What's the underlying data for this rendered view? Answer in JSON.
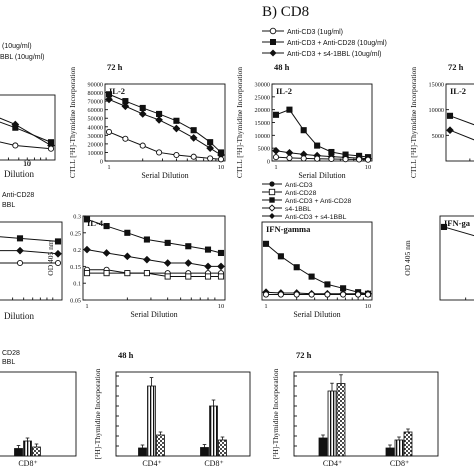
{
  "figure": {
    "section_b_title": "B) CD8",
    "legend_top": [
      {
        "label": "Anti-CD3 (1ug/ml)",
        "marker": "circle-open"
      },
      {
        "label": "Anti-CD3 + Anti-CD28 (10ug/ml)",
        "marker": "square-filled"
      },
      {
        "label": "Anti-CD3 + s4-1BBL (10ug/ml)",
        "marker": "diamond-filled"
      }
    ],
    "legend_top_left_fragments": [
      "(10ug/ml)",
      "BBL (10ug/ml)"
    ],
    "legend_mid": [
      {
        "label": "Anti-CD3",
        "marker": "circle-filled"
      },
      {
        "label": "Anti-CD28",
        "marker": "square-open"
      },
      {
        "label": "Anti-CD3 + Anti-CD28",
        "marker": "square-filled"
      },
      {
        "label": "s4-1BBL",
        "marker": "diamond-open"
      },
      {
        "label": "Anti-CD3 + s4-1BBL",
        "marker": "diamond-filled"
      }
    ],
    "legend_mid_left_fragments": [
      "Anti-CD28",
      "BBL"
    ],
    "legend_bottom_left_fragments": [
      "CD28",
      "BBL"
    ],
    "left_cut_labels": [
      "10",
      "Dilution",
      "Dilution"
    ]
  },
  "chart_data": [
    {
      "type": "line",
      "panel": "top-left-fragment",
      "xlabel": "Serial Dilution",
      "x_ticks": [
        "10"
      ],
      "series": [
        {
          "marker": "diamond-filled",
          "values": [
            70,
            62,
            44,
            18
          ]
        },
        {
          "marker": "square-filled",
          "values": [
            66,
            56,
            40,
            22
          ]
        },
        {
          "marker": "circle-open",
          "values": [
            38,
            28,
            18,
            14
          ]
        }
      ]
    },
    {
      "type": "line",
      "panel": "top-2",
      "title": "72 h",
      "label": "IL-2",
      "ylabel": "CTLL [³H]-Thymidine Incorporation",
      "xlabel": "Serial Dilution",
      "xscale": "log",
      "xlim": [
        1,
        10
      ],
      "x_ticks": [
        "1",
        "10"
      ],
      "ylim": [
        0,
        90000
      ],
      "y_ticks": [
        "0",
        "10000",
        "20000",
        "30000",
        "40000",
        "50000",
        "60000",
        "70000",
        "80000",
        "90000"
      ],
      "x": [
        1,
        1.4,
        2,
        2.8,
        4,
        5.7,
        8,
        10
      ],
      "series": [
        {
          "marker": "square-filled",
          "values": [
            78000,
            70000,
            62000,
            55000,
            47000,
            36000,
            22000,
            10000
          ]
        },
        {
          "marker": "diamond-filled",
          "values": [
            72000,
            64000,
            55000,
            48000,
            38000,
            27000,
            15000,
            7000
          ]
        },
        {
          "marker": "circle-open",
          "values": [
            34000,
            26000,
            18000,
            10000,
            7000,
            5000,
            3000,
            2000
          ]
        }
      ]
    },
    {
      "type": "line",
      "panel": "top-3",
      "title": "48 h",
      "label": "IL-2",
      "ylabel": "CTLL [³H]-Thymidine Incorporation",
      "xlabel": "Serial Dilution",
      "xscale": "log",
      "xlim": [
        1,
        10
      ],
      "x_ticks": [
        "1",
        "10"
      ],
      "ylim": [
        0,
        30000
      ],
      "y_ticks": [
        "0",
        "5000",
        "10000",
        "15000",
        "20000",
        "25000",
        "30000"
      ],
      "x": [
        1,
        1.4,
        2,
        2.8,
        4,
        5.7,
        8,
        10
      ],
      "series": [
        {
          "marker": "square-filled",
          "values": [
            18000,
            20000,
            12000,
            6000,
            3500,
            2500,
            2000,
            1500
          ]
        },
        {
          "marker": "diamond-filled",
          "values": [
            4000,
            3200,
            2600,
            2100,
            1700,
            1400,
            1100,
            900
          ]
        },
        {
          "marker": "circle-open",
          "values": [
            1500,
            1200,
            1000,
            900,
            800,
            700,
            600,
            500
          ]
        }
      ]
    },
    {
      "type": "line",
      "panel": "top-4-fragment",
      "title": "72 h",
      "label": "IL-2",
      "ylabel": "CTLL [³H]-Thymidine Incorporation",
      "y_ticks": [
        "5000",
        "10000",
        "15000"
      ],
      "ylim": [
        0,
        15000
      ],
      "x": [
        1,
        1.4,
        2
      ],
      "series": [
        {
          "marker": "square-filled",
          "values": [
            8800,
            6500,
            4000
          ]
        },
        {
          "marker": "diamond-filled",
          "values": [
            6000,
            3500,
            1500
          ]
        }
      ]
    },
    {
      "type": "line",
      "panel": "mid-left-fragment",
      "xlabel": "Dilution",
      "series": [
        {
          "marker": "square-filled",
          "values": [
            0.22,
            0.21,
            0.2,
            0.19
          ]
        },
        {
          "marker": "diamond-filled",
          "values": [
            0.17,
            0.16,
            0.16,
            0.15
          ]
        },
        {
          "marker": "circle-open",
          "values": [
            0.12,
            0.12,
            0.12,
            0.12
          ]
        }
      ]
    },
    {
      "type": "line",
      "panel": "mid-2",
      "label": "IL-4",
      "ylabel": "OD 405 nm",
      "xlabel": "Serial Dilution",
      "xscale": "log",
      "xlim": [
        1,
        10
      ],
      "x_ticks": [
        "1",
        "10"
      ],
      "ylim": [
        0.05,
        0.3
      ],
      "y_ticks": [
        "0.05",
        "0.1",
        "0.15",
        "0.2",
        "0.25",
        "0.3"
      ],
      "x": [
        1,
        1.4,
        2,
        2.8,
        4,
        5.7,
        8,
        10
      ],
      "series": [
        {
          "marker": "square-filled",
          "values": [
            0.29,
            0.27,
            0.25,
            0.23,
            0.22,
            0.21,
            0.2,
            0.19
          ]
        },
        {
          "marker": "diamond-filled",
          "values": [
            0.2,
            0.19,
            0.18,
            0.17,
            0.16,
            0.16,
            0.15,
            0.15
          ]
        },
        {
          "marker": "circle-open",
          "values": [
            0.14,
            0.14,
            0.13,
            0.13,
            0.13,
            0.13,
            0.13,
            0.13
          ]
        },
        {
          "marker": "square-open",
          "values": [
            0.13,
            0.13,
            0.13,
            0.13,
            0.12,
            0.12,
            0.12,
            0.12
          ]
        }
      ]
    },
    {
      "type": "line",
      "panel": "mid-3",
      "label": "IFN-gamma",
      "xlabel": "Serial Dilution",
      "xscale": "log",
      "xlim": [
        1,
        10
      ],
      "x_ticks": [
        "1",
        "10"
      ],
      "ylim": [
        0,
        1
      ],
      "x": [
        1,
        1.4,
        2,
        2.8,
        4,
        5.7,
        8,
        10
      ],
      "series": [
        {
          "marker": "square-filled",
          "values": [
            0.72,
            0.56,
            0.42,
            0.3,
            0.2,
            0.15,
            0.1,
            0.08
          ]
        },
        {
          "marker": "diamond-filled",
          "values": [
            0.1,
            0.09,
            0.09,
            0.08,
            0.08,
            0.08,
            0.08,
            0.08
          ]
        },
        {
          "marker": "circle-open",
          "values": [
            0.07,
            0.07,
            0.07,
            0.07,
            0.07,
            0.07,
            0.07,
            0.07
          ]
        }
      ]
    },
    {
      "type": "line",
      "panel": "mid-4-fragment",
      "label": "IFN-ga",
      "ylabel": "OD 405 nm",
      "series": [
        {
          "marker": "square-filled",
          "values": [
            0.7,
            0.5
          ]
        }
      ]
    },
    {
      "type": "bar",
      "panel": "bottom-left-fragment",
      "categories": [
        "CD8⁺"
      ],
      "series": [
        {
          "pattern": "solid",
          "values": [
            1.5
          ]
        },
        {
          "pattern": "vertical-stripes",
          "values": [
            3.0
          ]
        },
        {
          "pattern": "dotted",
          "values": [
            1.8
          ]
        }
      ]
    },
    {
      "type": "bar",
      "panel": "bottom-2",
      "title": "48 h",
      "ylabel": "[³H]-Thymidine Incorporation",
      "categories": [
        "CD4⁺",
        "CD8⁺"
      ],
      "series": [
        {
          "pattern": "solid",
          "values": [
            1.6,
            1.7
          ]
        },
        {
          "pattern": "vertical-stripes",
          "values": [
            14.0,
            10.0
          ]
        },
        {
          "pattern": "dotted",
          "values": [
            4.2,
            3.2
          ]
        }
      ]
    },
    {
      "type": "bar",
      "panel": "bottom-3",
      "title": "72 h",
      "ylabel": "[³H]-Thymidine Incorporation",
      "categories": [
        "CD4⁺",
        "CD8⁺"
      ],
      "series": [
        {
          "pattern": "solid",
          "values": [
            3.6,
            1.6
          ]
        },
        {
          "pattern": "vertical-stripes",
          "values": [
            13.0,
            3.2
          ]
        },
        {
          "pattern": "dotted",
          "values": [
            14.5,
            4.8
          ]
        }
      ]
    }
  ]
}
